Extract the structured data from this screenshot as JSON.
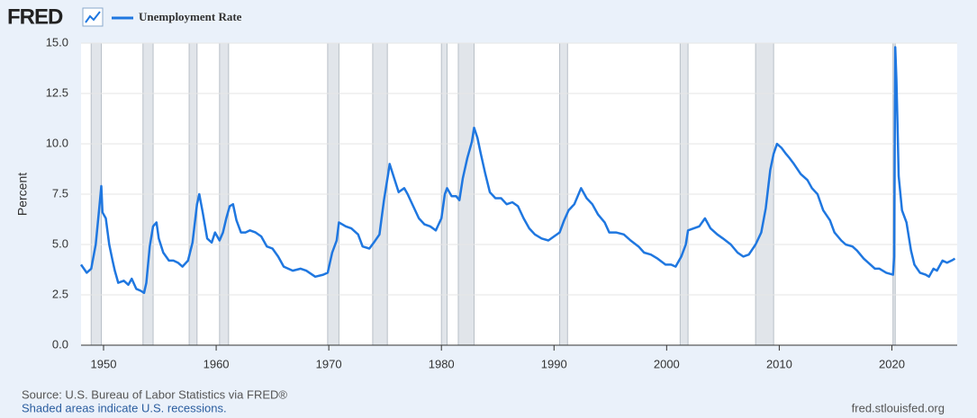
{
  "chart_data": {
    "type": "line",
    "brand": "FRED",
    "ylabel": "Percent",
    "source": "Source: U.S. Bureau of Labor Statistics via FRED®",
    "note": "Shaded areas indicate U.S. recessions.",
    "site": "fred.stlouisfed.org",
    "xlim": [
      1948,
      2025.8
    ],
    "xticks": [
      1950,
      1960,
      1970,
      1980,
      1990,
      2000,
      2010,
      2020
    ],
    "ylim": [
      0,
      15
    ],
    "yticks": [
      {
        "value": 0,
        "label": "0.0"
      },
      2.5,
      {
        "value": 5,
        "label": "5.0"
      },
      7.5,
      {
        "value": 10,
        "label": "10.0"
      },
      12.5,
      {
        "value": 15,
        "label": "15.0"
      }
    ],
    "grid": true,
    "recession_color": "#e1e5ea",
    "recessions": [
      [
        1948.9,
        1949.8
      ],
      [
        1953.5,
        1954.4
      ],
      [
        1957.6,
        1958.3
      ],
      [
        1960.3,
        1961.1
      ],
      [
        1969.9,
        1970.9
      ],
      [
        1973.9,
        1975.2
      ],
      [
        1980.0,
        1980.5
      ],
      [
        1981.5,
        1982.9
      ],
      [
        1990.5,
        1991.2
      ],
      [
        2001.2,
        2001.9
      ],
      [
        2007.9,
        2009.5
      ],
      [
        2020.1,
        2020.3
      ]
    ],
    "x": [
      1948.0,
      1948.5,
      1948.9,
      1949.3,
      1949.6,
      1949.8,
      1949.9,
      1950.2,
      1950.5,
      1950.8,
      1951.0,
      1951.3,
      1951.8,
      1952.2,
      1952.5,
      1952.9,
      1953.3,
      1953.6,
      1953.8,
      1954.1,
      1954.4,
      1954.7,
      1954.9,
      1955.3,
      1955.8,
      1956.2,
      1956.6,
      1957.0,
      1957.5,
      1957.9,
      1958.3,
      1958.5,
      1958.8,
      1959.2,
      1959.6,
      1959.9,
      1960.3,
      1960.6,
      1960.9,
      1961.2,
      1961.5,
      1961.8,
      1962.2,
      1962.6,
      1963.0,
      1963.5,
      1964.0,
      1964.5,
      1965.0,
      1965.5,
      1966.0,
      1966.8,
      1967.5,
      1968.0,
      1968.8,
      1969.5,
      1969.9,
      1970.3,
      1970.7,
      1970.9,
      1971.5,
      1972.0,
      1972.6,
      1973.0,
      1973.6,
      1974.0,
      1974.5,
      1974.9,
      1975.3,
      1975.4,
      1975.8,
      1976.2,
      1976.7,
      1977.0,
      1977.5,
      1978.0,
      1978.5,
      1979.0,
      1979.5,
      1980.0,
      1980.3,
      1980.5,
      1980.9,
      1981.3,
      1981.6,
      1981.9,
      1982.3,
      1982.7,
      1982.9,
      1983.2,
      1983.5,
      1983.9,
      1984.3,
      1984.8,
      1985.3,
      1985.8,
      1986.3,
      1986.8,
      1987.3,
      1987.8,
      1988.3,
      1988.9,
      1989.5,
      1990.0,
      1990.5,
      1990.9,
      1991.3,
      1991.8,
      1992.4,
      1992.9,
      1993.4,
      1993.9,
      1994.5,
      1994.9,
      1995.5,
      1996.2,
      1996.8,
      1997.5,
      1998.0,
      1998.6,
      1999.2,
      1999.9,
      2000.4,
      2000.8,
      2001.3,
      2001.7,
      2001.9,
      2002.4,
      2002.9,
      2003.4,
      2003.9,
      2004.5,
      2005.0,
      2005.7,
      2006.3,
      2006.8,
      2007.3,
      2007.9,
      2008.4,
      2008.8,
      2009.2,
      2009.5,
      2009.8,
      2010.2,
      2010.6,
      2010.9,
      2011.3,
      2011.9,
      2012.5,
      2012.9,
      2013.4,
      2013.9,
      2014.5,
      2014.9,
      2015.5,
      2015.9,
      2016.5,
      2016.9,
      2017.5,
      2017.9,
      2018.5,
      2018.9,
      2019.5,
      2020.1,
      2020.2,
      2020.3,
      2020.4,
      2020.5,
      2020.6,
      2020.9,
      2021.3,
      2021.7,
      2022.0,
      2022.5,
      2023.0,
      2023.3,
      2023.7,
      2024.0,
      2024.5,
      2024.9,
      2025.3,
      2025.6
    ],
    "series": [
      {
        "name": "Unemployment Rate",
        "color": "#1f77e0",
        "values": [
          4.0,
          3.6,
          3.8,
          5.0,
          6.7,
          7.9,
          6.6,
          6.3,
          5.0,
          4.2,
          3.7,
          3.1,
          3.2,
          3.0,
          3.3,
          2.8,
          2.7,
          2.6,
          3.1,
          4.9,
          5.9,
          6.1,
          5.3,
          4.6,
          4.2,
          4.2,
          4.1,
          3.9,
          4.2,
          5.1,
          7.0,
          7.5,
          6.6,
          5.3,
          5.1,
          5.6,
          5.2,
          5.6,
          6.3,
          6.9,
          7.0,
          6.2,
          5.6,
          5.6,
          5.7,
          5.6,
          5.4,
          4.9,
          4.8,
          4.4,
          3.9,
          3.7,
          3.8,
          3.7,
          3.4,
          3.5,
          3.6,
          4.6,
          5.2,
          6.1,
          5.9,
          5.8,
          5.5,
          4.9,
          4.8,
          5.1,
          5.5,
          7.2,
          8.6,
          9.0,
          8.3,
          7.6,
          7.8,
          7.5,
          6.9,
          6.3,
          6.0,
          5.9,
          5.7,
          6.3,
          7.5,
          7.8,
          7.4,
          7.4,
          7.2,
          8.3,
          9.3,
          10.1,
          10.8,
          10.3,
          9.5,
          8.5,
          7.6,
          7.3,
          7.3,
          7.0,
          7.1,
          6.9,
          6.3,
          5.8,
          5.5,
          5.3,
          5.2,
          5.4,
          5.6,
          6.2,
          6.7,
          7.0,
          7.8,
          7.3,
          7.0,
          6.5,
          6.1,
          5.6,
          5.6,
          5.5,
          5.2,
          4.9,
          4.6,
          4.5,
          4.3,
          4.0,
          4.0,
          3.9,
          4.4,
          5.0,
          5.7,
          5.8,
          5.9,
          6.3,
          5.8,
          5.5,
          5.3,
          5.0,
          4.6,
          4.4,
          4.5,
          5.0,
          5.6,
          6.8,
          8.7,
          9.5,
          10.0,
          9.8,
          9.5,
          9.3,
          9.0,
          8.5,
          8.2,
          7.8,
          7.5,
          6.7,
          6.2,
          5.6,
          5.2,
          5.0,
          4.9,
          4.7,
          4.3,
          4.1,
          3.8,
          3.8,
          3.6,
          3.5,
          4.4,
          14.8,
          13.2,
          11.0,
          8.4,
          6.7,
          6.1,
          4.7,
          4.0,
          3.6,
          3.5,
          3.4,
          3.8,
          3.7,
          4.2,
          4.1,
          4.2,
          4.3
        ]
      }
    ]
  }
}
